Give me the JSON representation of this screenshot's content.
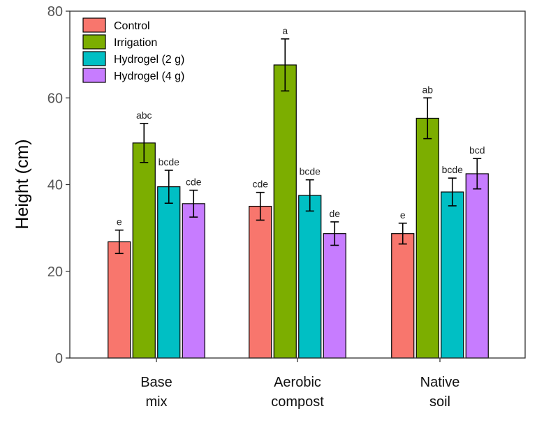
{
  "chart_data": {
    "type": "bar",
    "ylabel": "Height (cm)",
    "ylim": [
      0,
      80
    ],
    "yticks": [
      0,
      20,
      40,
      60,
      80
    ],
    "grid": false,
    "legend_position": "top-left",
    "categories": [
      [
        "Base",
        "mix"
      ],
      [
        "Aerobic",
        "compost"
      ],
      [
        "Native",
        "soil"
      ]
    ],
    "series": [
      {
        "name": "Control",
        "color": "#f8766d",
        "values": [
          26.8,
          35.0,
          28.7
        ],
        "errors": [
          2.7,
          3.2,
          2.4
        ],
        "letters": [
          "e",
          "cde",
          "e"
        ]
      },
      {
        "name": "Irrigation",
        "color": "#7cae00",
        "values": [
          49.6,
          67.6,
          55.3
        ],
        "errors": [
          4.5,
          6.0,
          4.7
        ],
        "letters": [
          "abc",
          "a",
          "ab"
        ]
      },
      {
        "name": "Hydrogel (2 g)",
        "color": "#00bfc4",
        "values": [
          39.5,
          37.5,
          38.3
        ],
        "errors": [
          3.8,
          3.6,
          3.2
        ],
        "letters": [
          "bcde",
          "bcde",
          "bcde"
        ]
      },
      {
        "name": "Hydrogel (4 g)",
        "color": "#c77cff",
        "values": [
          35.6,
          28.7,
          42.5
        ],
        "errors": [
          3.1,
          2.7,
          3.5
        ],
        "letters": [
          "cde",
          "de",
          "bcd"
        ]
      }
    ]
  }
}
